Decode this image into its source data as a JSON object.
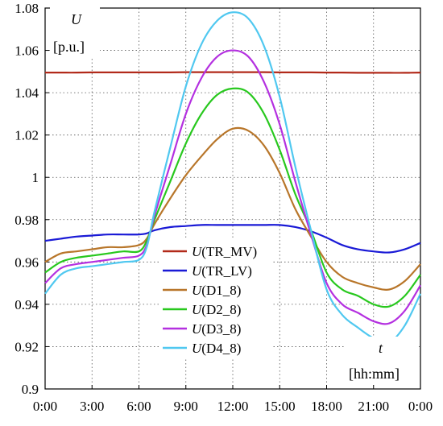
{
  "chart_data": {
    "type": "line",
    "title": "",
    "ylabel": {
      "symbol": "U",
      "unit": "[p.u.]"
    },
    "xlabel": {
      "symbol": "t",
      "unit": "[hh:mm]"
    },
    "x": [
      "0:00",
      "1:00",
      "2:00",
      "3:00",
      "4:00",
      "5:00",
      "6:00",
      "6:30",
      "7:00",
      "8:00",
      "9:00",
      "10:00",
      "11:00",
      "12:00",
      "13:00",
      "14:00",
      "15:00",
      "16:00",
      "17:00",
      "18:00",
      "19:00",
      "20:00",
      "21:00",
      "22:00",
      "23:00",
      "24:00"
    ],
    "x_hours": [
      0,
      1,
      2,
      3,
      4,
      5,
      6,
      6.5,
      7,
      8,
      9,
      10,
      11,
      12,
      13,
      14,
      15,
      16,
      17,
      18,
      19,
      20,
      21,
      22,
      23,
      24
    ],
    "xticks": [
      "0:00",
      "3:00",
      "6:00",
      "9:00",
      "12:00",
      "15:00",
      "18:00",
      "21:00",
      "0:00"
    ],
    "xlim_hours": [
      0,
      24
    ],
    "yticks": [
      "0.9",
      "0.92",
      "0.94",
      "0.96",
      "0.98",
      "1",
      "1.02",
      "1.04",
      "1.06",
      "1.08"
    ],
    "ylim": [
      0.9,
      1.08
    ],
    "grid": true,
    "legend_position": "bottom-center",
    "series": [
      {
        "name": "TR_MV",
        "color": "#b22a1a",
        "values": [
          1.0495,
          1.0495,
          1.0495,
          1.0496,
          1.0496,
          1.0496,
          1.0496,
          1.0496,
          1.0496,
          1.0496,
          1.0497,
          1.0497,
          1.0497,
          1.0497,
          1.0497,
          1.0497,
          1.0496,
          1.0496,
          1.0496,
          1.0495,
          1.0495,
          1.0494,
          1.0494,
          1.0494,
          1.0494,
          1.0495
        ]
      },
      {
        "name": "TR_LV",
        "color": "#1a1ad6",
        "values": [
          0.97,
          0.971,
          0.972,
          0.9725,
          0.973,
          0.973,
          0.973,
          0.9735,
          0.975,
          0.9765,
          0.977,
          0.9775,
          0.9775,
          0.9775,
          0.9775,
          0.9775,
          0.9775,
          0.9765,
          0.9745,
          0.9715,
          0.968,
          0.966,
          0.965,
          0.9645,
          0.966,
          0.969
        ]
      },
      {
        "name": "D1_8",
        "color": "#b8762a",
        "values": [
          0.96,
          0.964,
          0.965,
          0.966,
          0.967,
          0.967,
          0.968,
          0.971,
          0.978,
          0.99,
          1.001,
          1.01,
          1.018,
          1.023,
          1.022,
          1.015,
          1.002,
          0.985,
          0.972,
          0.96,
          0.953,
          0.95,
          0.948,
          0.947,
          0.951,
          0.959
        ]
      },
      {
        "name": "D2_8",
        "color": "#28c81e",
        "values": [
          0.955,
          0.96,
          0.962,
          0.963,
          0.964,
          0.965,
          0.965,
          0.97,
          0.98,
          0.998,
          1.016,
          1.03,
          1.039,
          1.042,
          1.04,
          1.03,
          1.013,
          0.992,
          0.975,
          0.955,
          0.947,
          0.944,
          0.94,
          0.939,
          0.944,
          0.954
        ]
      },
      {
        "name": "D3_8",
        "color": "#b430e0",
        "values": [
          0.95,
          0.957,
          0.959,
          0.96,
          0.961,
          0.962,
          0.963,
          0.968,
          0.982,
          1.006,
          1.03,
          1.047,
          1.057,
          1.06,
          1.057,
          1.045,
          1.025,
          0.998,
          0.973,
          0.95,
          0.94,
          0.936,
          0.932,
          0.931,
          0.937,
          0.949
        ]
      },
      {
        "name": "D4_8",
        "color": "#50c8f0",
        "values": [
          0.945,
          0.954,
          0.957,
          0.958,
          0.959,
          0.96,
          0.961,
          0.967,
          0.984,
          1.014,
          1.043,
          1.063,
          1.074,
          1.078,
          1.075,
          1.062,
          1.038,
          1.005,
          0.975,
          0.947,
          0.935,
          0.929,
          0.924,
          0.922,
          0.93,
          0.945
        ]
      }
    ]
  }
}
